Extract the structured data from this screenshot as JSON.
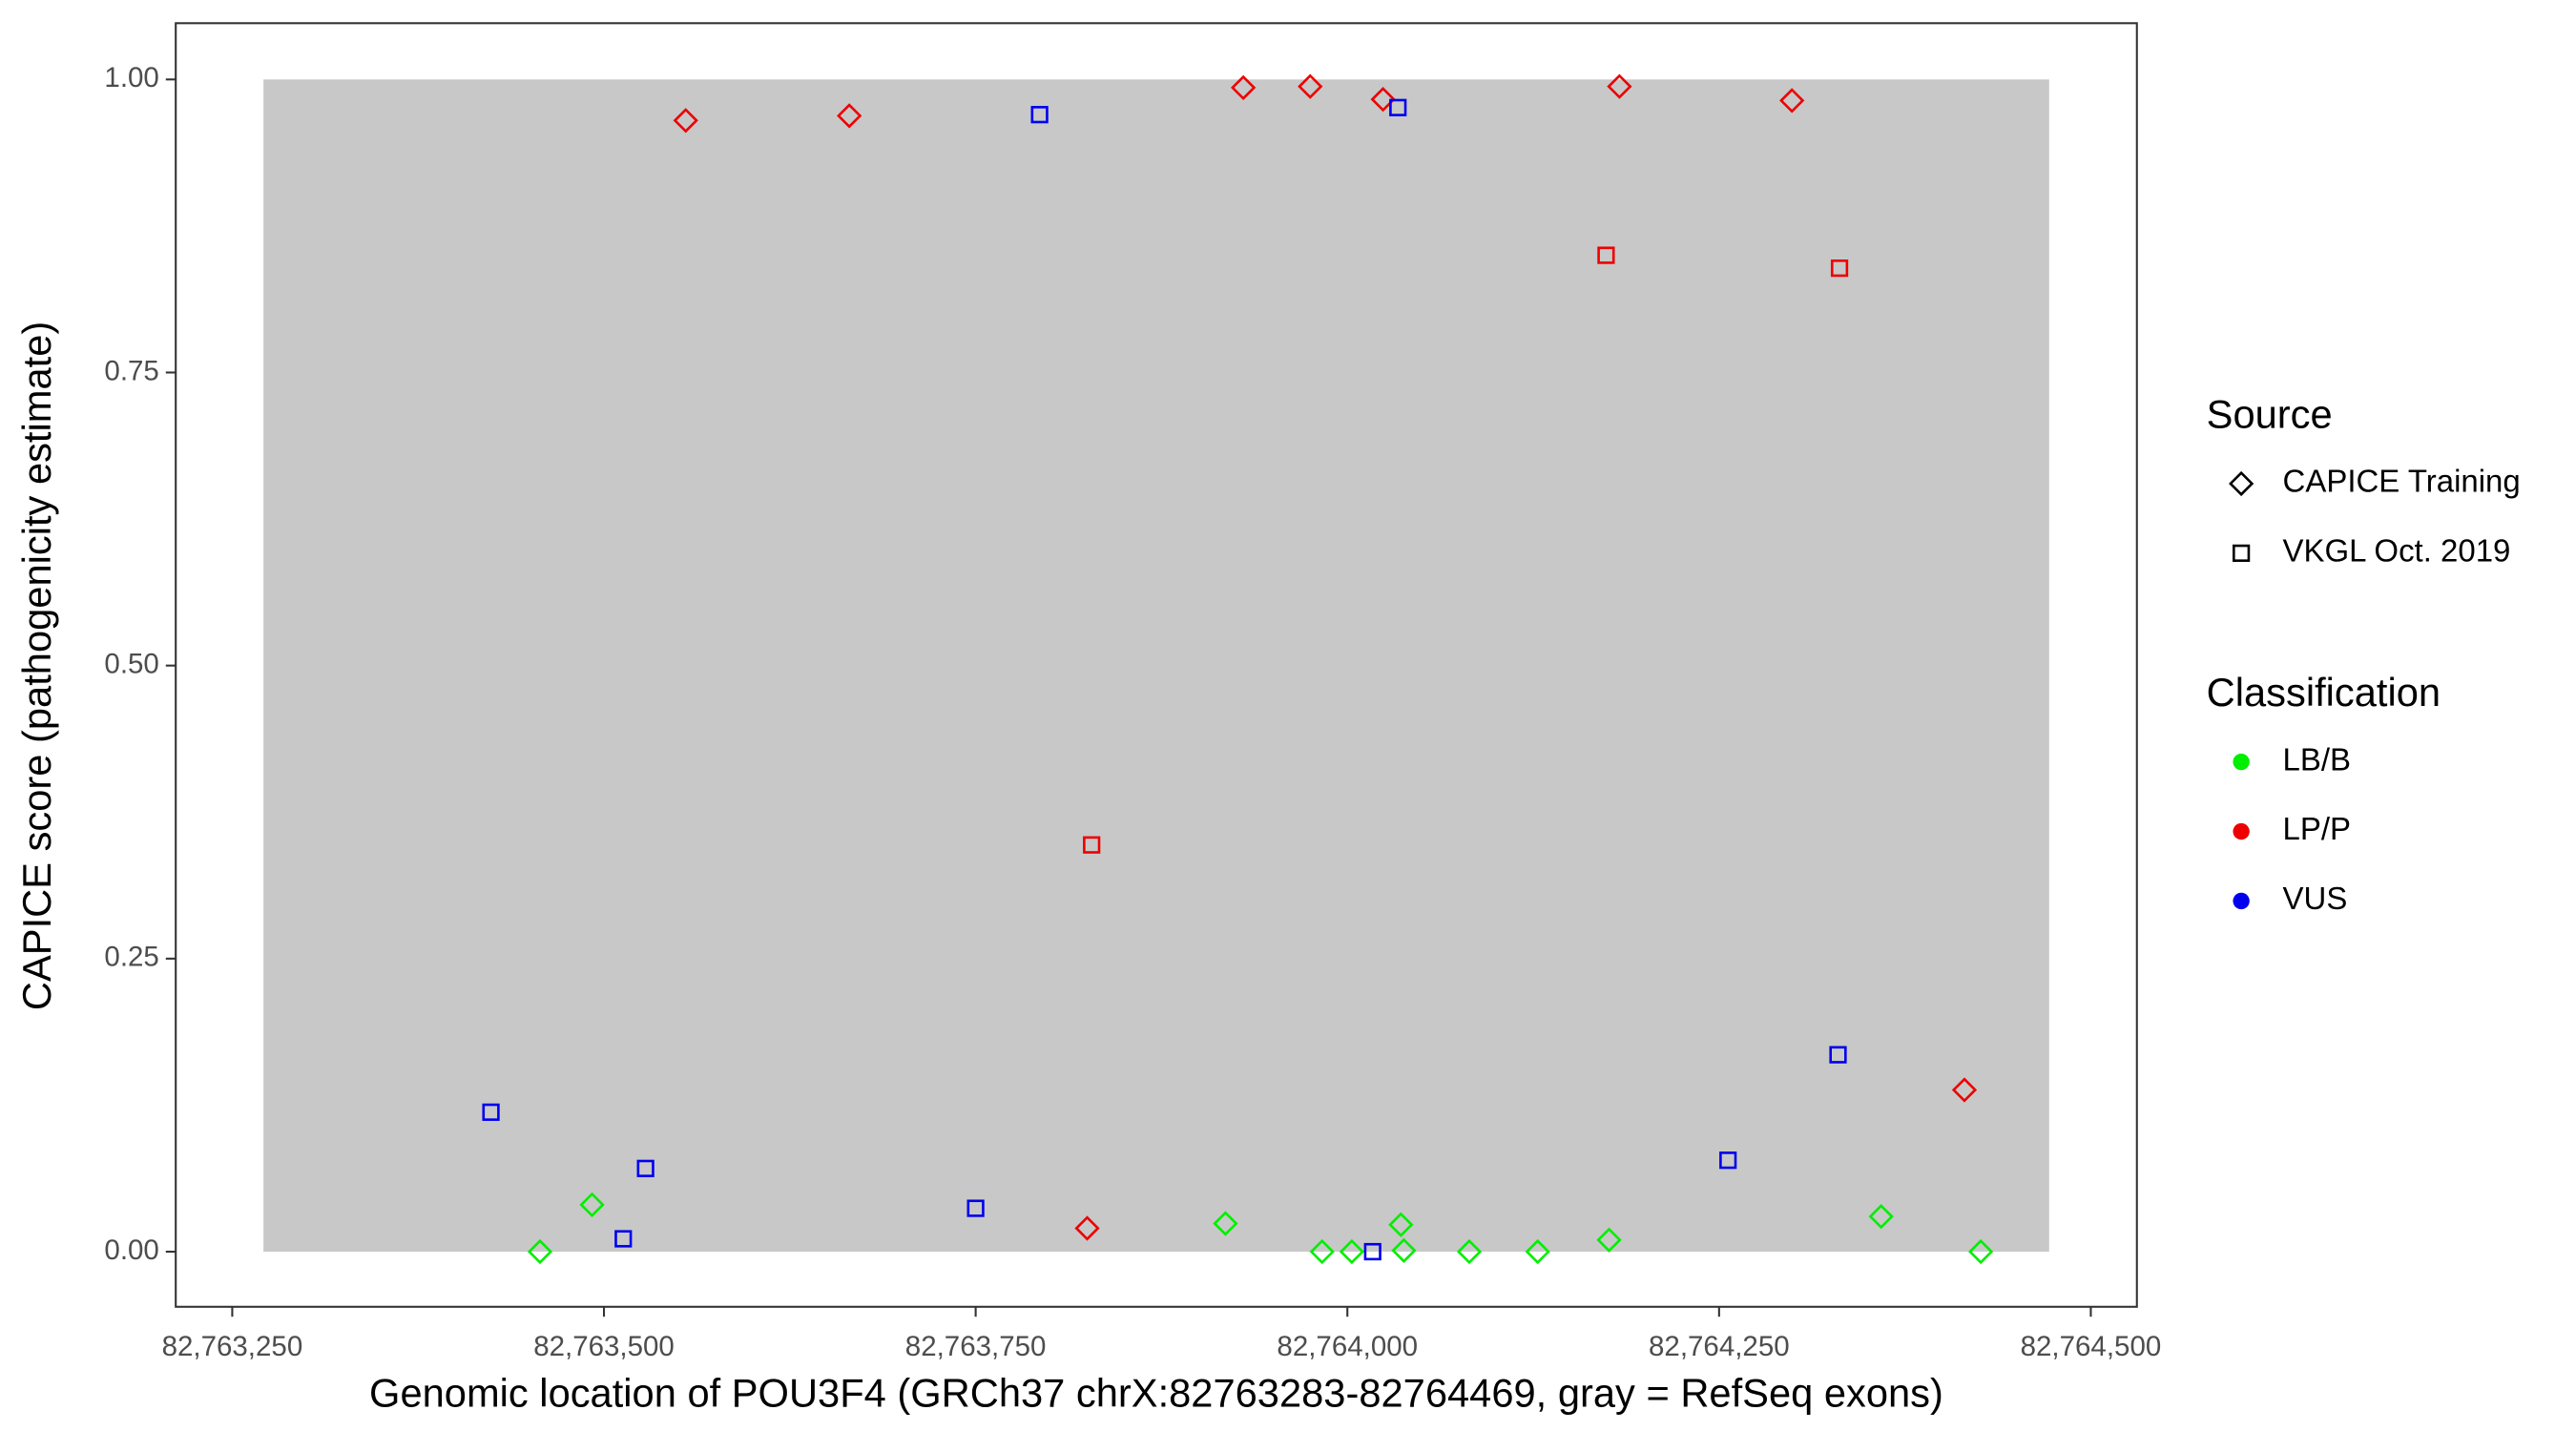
{
  "chart_data": {
    "type": "scatter",
    "x_label": "Genomic location of POU3F4 (GRCh37 chrX:82763283-82764469, gray = RefSeq exons)",
    "y_label": "CAPICE score (pathogenicity estimate)",
    "xlim": [
      82763212,
      82764531
    ],
    "ylim": [
      -0.047,
      1.048
    ],
    "xticks": [
      {
        "value": 82763250,
        "label": "82,763,250"
      },
      {
        "value": 82763500,
        "label": "82,763,500"
      },
      {
        "value": 82763750,
        "label": "82,763,750"
      },
      {
        "value": 82764000,
        "label": "82,764,000"
      },
      {
        "value": 82764250,
        "label": "82,764,250"
      },
      {
        "value": 82764500,
        "label": "82,764,500"
      }
    ],
    "yticks": [
      {
        "value": 0,
        "label": "0.00"
      },
      {
        "value": 0.25,
        "label": "0.25"
      },
      {
        "value": 0.5,
        "label": "0.50"
      },
      {
        "value": 0.75,
        "label": "0.75"
      },
      {
        "value": 1,
        "label": "1.00"
      }
    ],
    "shaded_region": {
      "x": [
        82763271,
        82764472
      ],
      "y": [
        0,
        1
      ],
      "color": "#c8c8c8"
    },
    "shape_legend": {
      "title": "Source",
      "entries": [
        {
          "name": "CAPICE Training",
          "shape": "diamond"
        },
        {
          "name": "VKGL Oct. 2019",
          "shape": "square"
        }
      ]
    },
    "color_legend": {
      "title": "Classification",
      "entries": [
        {
          "name": "LB/B",
          "color": "#00ee00"
        },
        {
          "name": "LP/P",
          "color": "#ee0000"
        },
        {
          "name": "VUS",
          "color": "#0000ee"
        }
      ]
    },
    "x": [
      82763555,
      82763665,
      82763930,
      82763975,
      82764024,
      82764183,
      82764299,
      82763825,
      82764415,
      82763457,
      82763492,
      82763918,
      82763983,
      82764003,
      82764036,
      82764038,
      82764082,
      82764128,
      82764176,
      82764359,
      82764426,
      82763424,
      82763513,
      82763528,
      82763750,
      82763793,
      82764034,
      82764017,
      82764256,
      82764330,
      82763828,
      82764174,
      82764331
    ],
    "y": [
      0.965,
      0.969,
      0.993,
      0.994,
      0.983,
      0.994,
      0.982,
      0.02,
      0.138,
      0.0,
      0.04,
      0.024,
      0.0,
      0.0,
      0.023,
      0.001,
      0.0,
      0.0,
      0.01,
      0.03,
      0.0,
      0.119,
      0.011,
      0.071,
      0.037,
      0.97,
      0.976,
      0.0,
      0.078,
      0.168,
      0.347,
      0.85,
      0.839
    ],
    "source": [
      "CAPICE Training",
      "CAPICE Training",
      "CAPICE Training",
      "CAPICE Training",
      "CAPICE Training",
      "CAPICE Training",
      "CAPICE Training",
      "CAPICE Training",
      "CAPICE Training",
      "CAPICE Training",
      "CAPICE Training",
      "CAPICE Training",
      "CAPICE Training",
      "CAPICE Training",
      "CAPICE Training",
      "CAPICE Training",
      "CAPICE Training",
      "CAPICE Training",
      "CAPICE Training",
      "CAPICE Training",
      "CAPICE Training",
      "VKGL Oct. 2019",
      "VKGL Oct. 2019",
      "VKGL Oct. 2019",
      "VKGL Oct. 2019",
      "VKGL Oct. 2019",
      "VKGL Oct. 2019",
      "VKGL Oct. 2019",
      "VKGL Oct. 2019",
      "VKGL Oct. 2019",
      "VKGL Oct. 2019",
      "VKGL Oct. 2019",
      "VKGL Oct. 2019"
    ],
    "classification": [
      "LP/P",
      "LP/P",
      "LP/P",
      "LP/P",
      "LP/P",
      "LP/P",
      "LP/P",
      "LP/P",
      "LP/P",
      "LB/B",
      "LB/B",
      "LB/B",
      "LB/B",
      "LB/B",
      "LB/B",
      "LB/B",
      "LB/B",
      "LB/B",
      "LB/B",
      "LB/B",
      "LB/B",
      "VUS",
      "VUS",
      "VUS",
      "VUS",
      "VUS",
      "VUS",
      "VUS",
      "VUS",
      "VUS",
      "LP/P",
      "LP/P",
      "LP/P"
    ]
  }
}
